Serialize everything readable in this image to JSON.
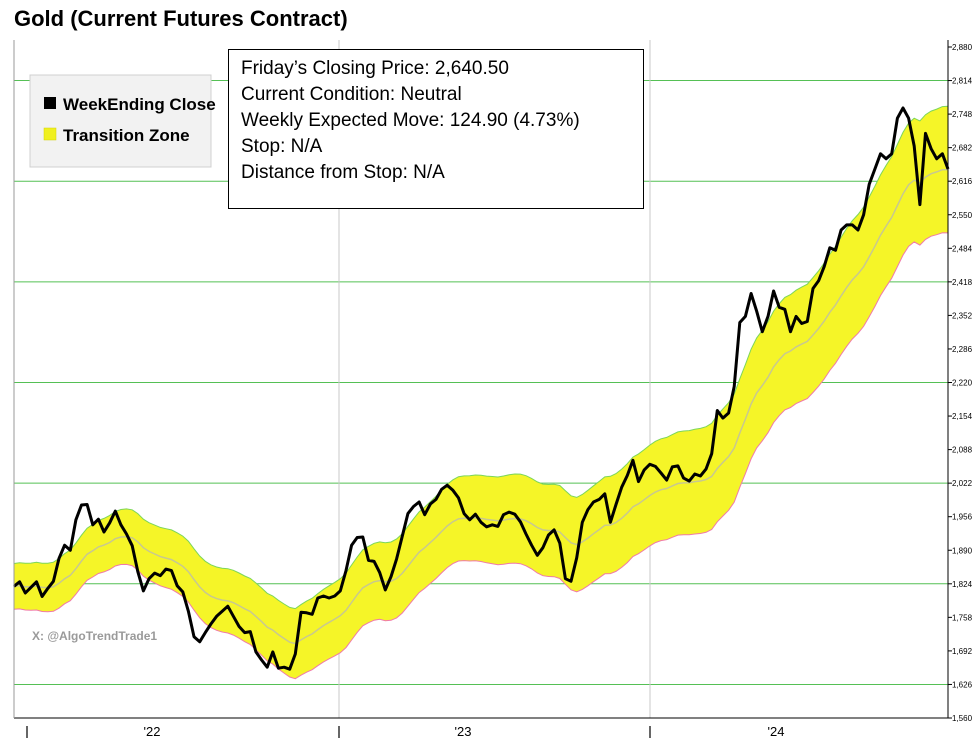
{
  "chart_data": {
    "type": "line",
    "title": "Gold (Current Futures Contract)",
    "xlabel": "",
    "ylabel": "",
    "ylim": [
      1560,
      2900
    ],
    "y_ticks": [
      1560,
      1626,
      1692,
      1758,
      1824,
      1890,
      1956,
      2022,
      2088,
      2154,
      2220,
      2286,
      2352,
      2418,
      2484,
      2550,
      2616,
      2682,
      2748,
      2814,
      2880
    ],
    "y_tick_labels": [
      "1,560",
      "1,626",
      "1,692",
      "1,758",
      "1,824",
      "1,890",
      "1,956",
      "2,022",
      "2,088",
      "2,154",
      "2,220",
      "2,286",
      "2,352",
      "2,418",
      "2,484",
      "2,550",
      "2,616",
      "2,682",
      "2,748",
      "2,814",
      "2,880"
    ],
    "x_tick_labels": [
      "'22",
      "'23",
      "'24"
    ],
    "grid": true,
    "legend_position": "top-left",
    "legend": [
      {
        "label": "WeekEnding Close",
        "color": "#000000"
      },
      {
        "label": "Transition Zone",
        "color": "#f0f020"
      }
    ],
    "series": [
      {
        "name": "WeekEnding Close",
        "color": "#000000",
        "values": [
          1819,
          1828,
          1806,
          1817,
          1828,
          1799,
          1815,
          1829,
          1874,
          1900,
          1890,
          1950,
          1979,
          1980,
          1940,
          1951,
          1926,
          1944,
          1967,
          1940,
          1922,
          1899,
          1848,
          1810,
          1834,
          1845,
          1840,
          1853,
          1850,
          1820,
          1808,
          1770,
          1720,
          1710,
          1728,
          1745,
          1760,
          1770,
          1780,
          1760,
          1740,
          1728,
          1730,
          1690,
          1674,
          1660,
          1690,
          1658,
          1660,
          1656,
          1686,
          1768,
          1767,
          1764,
          1796,
          1800,
          1796,
          1800,
          1810,
          1850,
          1900,
          1915,
          1916,
          1870,
          1868,
          1846,
          1812,
          1838,
          1873,
          1917,
          1962,
          1976,
          1985,
          1960,
          1981,
          1990,
          2010,
          2018,
          2008,
          1993,
          1962,
          1950,
          1961,
          1945,
          1936,
          1940,
          1937,
          1960,
          1965,
          1961,
          1946,
          1922,
          1900,
          1880,
          1895,
          1920,
          1930,
          1904,
          1834,
          1829,
          1875,
          1945,
          1970,
          1985,
          1990,
          2001,
          1945,
          1980,
          2014,
          2037,
          2067,
          2025,
          2048,
          2059,
          2055,
          2042,
          2028,
          2054,
          2056,
          2032,
          2026,
          2040,
          2036,
          2050,
          2080,
          2165,
          2150,
          2160,
          2212,
          2338,
          2350,
          2395,
          2360,
          2320,
          2350,
          2400,
          2368,
          2364,
          2320,
          2350,
          2336,
          2340,
          2405,
          2420,
          2448,
          2485,
          2480,
          2520,
          2530,
          2530,
          2520,
          2550,
          2610,
          2640,
          2670,
          2660,
          2670,
          2740,
          2760,
          2740,
          2685,
          2570,
          2710,
          2680,
          2660,
          2670,
          2640
        ]
      }
    ]
  },
  "info_box": {
    "lines": [
      "Friday’s Closing Price: 2,640.50",
      "Current Condition: Neutral",
      "Weekly Expected Move: 124.90 (4.73%)",
      "Stop: N/A",
      "Distance from Stop: N/A"
    ]
  },
  "watermark": "X: @AlgoTrendTrade1",
  "colors": {
    "close_line": "#000000",
    "zone_fill": "#f5f528",
    "zone_upper_edge": "#7cd65a",
    "zone_lower_edge": "#f07aa8",
    "zone_mid": "#c8c890",
    "grid_h": "#55c055",
    "grid_v": "#c8c8c8"
  }
}
